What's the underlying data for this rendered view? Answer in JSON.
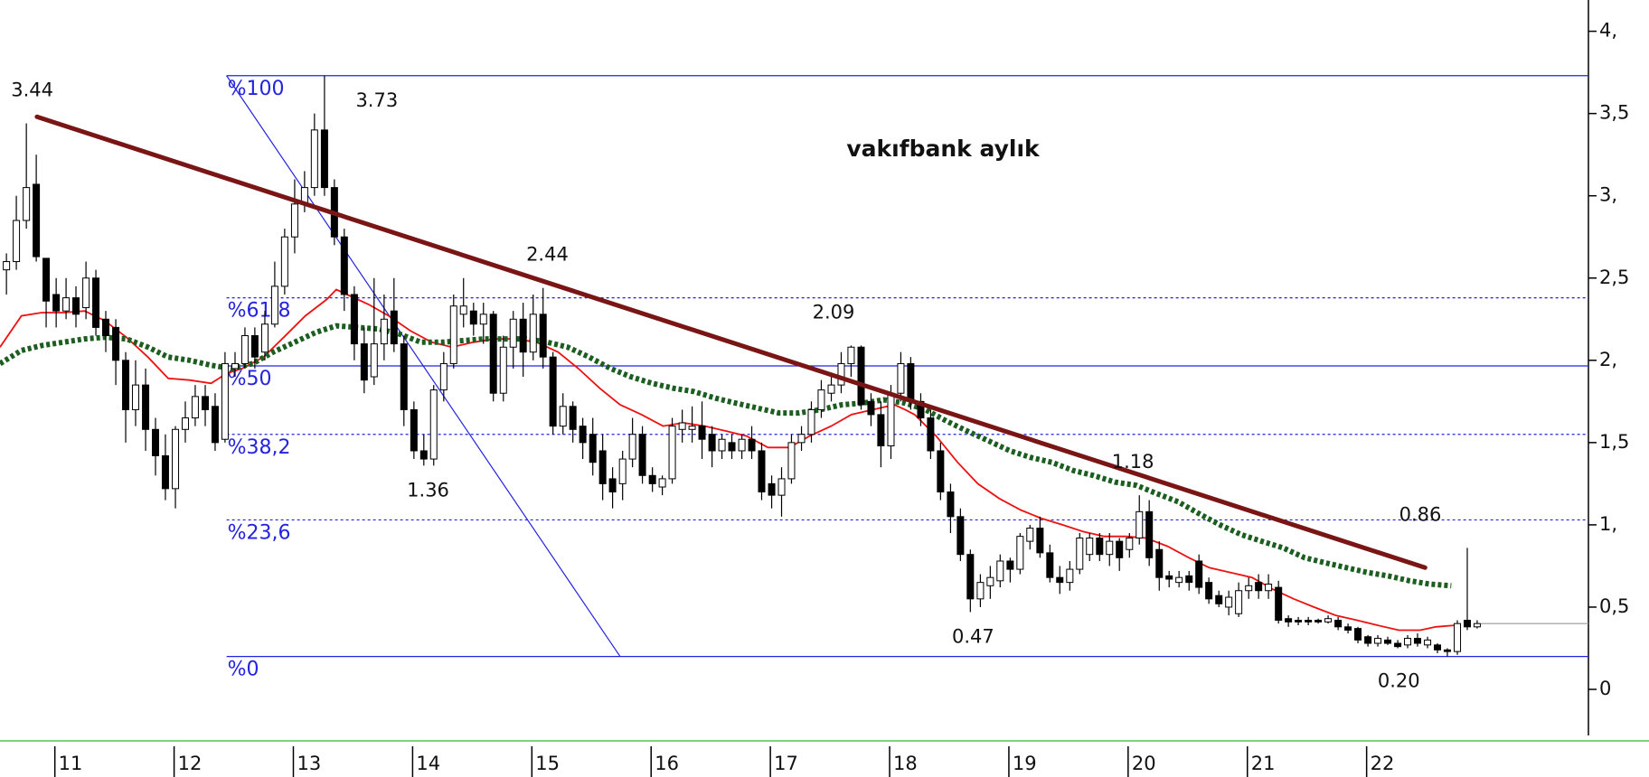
{
  "chart_data": {
    "type": "candlestick",
    "title": "vakıfbank aylık",
    "xlim": [
      2010.54,
      2023.86
    ],
    "ylim": [
      -0.28,
      4.19
    ],
    "xticks": [
      {
        "value": 2011,
        "label": "11"
      },
      {
        "value": 2012,
        "label": "12"
      },
      {
        "value": 2013,
        "label": "13"
      },
      {
        "value": 2014,
        "label": "14"
      },
      {
        "value": 2015,
        "label": "15"
      },
      {
        "value": 2016,
        "label": "16"
      },
      {
        "value": 2017,
        "label": "17"
      },
      {
        "value": 2018,
        "label": "18"
      },
      {
        "value": 2019,
        "label": "19"
      },
      {
        "value": 2020,
        "label": "20"
      },
      {
        "value": 2021,
        "label": "21"
      },
      {
        "value": 2022,
        "label": "22"
      }
    ],
    "yticks": [
      0,
      {
        "value": 0.5,
        "label": "0,5"
      },
      {
        "value": 1,
        "label": "1,"
      },
      {
        "value": 1.5,
        "label": "1,5"
      },
      {
        "value": 2,
        "label": "2,"
      },
      {
        "value": 2.5,
        "label": "2,5"
      },
      {
        "value": 3,
        "label": "3,"
      },
      {
        "value": 3.5,
        "label": "3,5"
      },
      {
        "value": 4,
        "label": "4,"
      }
    ],
    "up_color": "#ffffff",
    "down_color": "#000000",
    "x": [
      2010.594,
      2010.677,
      2010.761,
      2010.844,
      2010.927,
      2011.011,
      2011.094,
      2011.177,
      2011.261,
      2011.344,
      2011.427,
      2011.511,
      2011.594,
      2011.677,
      2011.761,
      2011.844,
      2011.927,
      2012.011,
      2012.094,
      2012.177,
      2012.261,
      2012.344,
      2012.427,
      2012.511,
      2012.594,
      2012.677,
      2012.761,
      2012.844,
      2012.927,
      2013.011,
      2013.094,
      2013.177,
      2013.261,
      2013.344,
      2013.427,
      2013.511,
      2013.594,
      2013.677,
      2013.761,
      2013.844,
      2013.927,
      2014.011,
      2014.094,
      2014.177,
      2014.261,
      2014.344,
      2014.427,
      2014.511,
      2014.594,
      2014.677,
      2014.761,
      2014.844,
      2014.927,
      2015.011,
      2015.094,
      2015.177,
      2015.261,
      2015.344,
      2015.427,
      2015.511,
      2015.594,
      2015.677,
      2015.761,
      2015.844,
      2015.927,
      2016.011,
      2016.094,
      2016.177,
      2016.261,
      2016.344,
      2016.427,
      2016.511,
      2016.594,
      2016.677,
      2016.761,
      2016.844,
      2016.927,
      2017.011,
      2017.094,
      2017.177,
      2017.261,
      2017.344,
      2017.427,
      2017.511,
      2017.594,
      2017.677,
      2017.761,
      2017.844,
      2017.927,
      2018.011,
      2018.094,
      2018.177,
      2018.261,
      2018.344,
      2018.427,
      2018.511,
      2018.594,
      2018.677,
      2018.761,
      2018.844,
      2018.927,
      2019.011,
      2019.094,
      2019.177,
      2019.261,
      2019.344,
      2019.427,
      2019.511,
      2019.594,
      2019.677,
      2019.761,
      2019.844,
      2019.927,
      2020.011,
      2020.094,
      2020.177,
      2020.261,
      2020.344,
      2020.427,
      2020.511,
      2020.594,
      2020.677,
      2020.761,
      2020.844,
      2020.927,
      2021.011,
      2021.094,
      2021.177,
      2021.261,
      2021.344,
      2021.427,
      2021.511,
      2021.594,
      2021.677,
      2021.761,
      2021.844,
      2021.927,
      2022.011,
      2022.094,
      2022.177,
      2022.261,
      2022.344,
      2022.427,
      2022.511,
      2022.594,
      2022.677,
      2022.761,
      2022.844,
      2022.927
    ],
    "open": [
      2.55,
      2.6,
      2.85,
      3.07,
      2.62,
      2.4,
      2.3,
      2.38,
      2.32,
      2.5,
      2.25,
      2.2,
      2.0,
      1.7,
      1.85,
      1.58,
      1.42,
      1.22,
      1.58,
      1.65,
      1.78,
      1.72,
      1.52,
      1.95,
      1.98,
      2.15,
      2.05,
      2.22,
      2.45,
      2.75,
      2.95,
      3.05,
      3.4,
      3.05,
      2.75,
      2.4,
      2.1,
      1.9,
      2.1,
      2.3,
      2.1,
      1.7,
      1.45,
      1.4,
      1.82,
      1.98,
      2.28,
      2.3,
      2.22,
      2.28,
      1.8,
      2.08,
      2.25,
      2.05,
      2.28,
      2.02,
      1.6,
      1.72,
      1.6,
      1.55,
      1.45,
      1.28,
      1.25,
      1.4,
      1.55,
      1.3,
      1.23,
      1.28,
      1.58,
      1.58,
      1.6,
      1.55,
      1.45,
      1.5,
      1.45,
      1.52,
      1.45,
      1.25,
      1.18,
      1.28,
      1.5,
      1.55,
      1.7,
      1.8,
      1.85,
      1.98,
      2.08,
      1.75,
      1.67,
      1.48,
      1.8,
      1.98,
      1.75,
      1.65,
      1.45,
      1.2,
      1.05,
      0.82,
      0.55,
      0.63,
      0.66,
      0.78,
      0.73,
      0.9,
      0.98,
      0.83,
      0.68,
      0.65,
      0.73,
      0.82,
      0.92,
      0.82,
      0.9,
      0.85,
      0.92,
      1.08,
      0.85,
      0.69,
      0.65,
      0.69,
      0.78,
      0.65,
      0.57,
      0.5,
      0.46,
      0.6,
      0.65,
      0.6,
      0.62,
      0.43,
      0.42,
      0.42,
      0.42,
      0.41,
      0.42,
      0.38,
      0.37,
      0.32,
      0.28,
      0.3,
      0.28,
      0.27,
      0.31,
      0.27,
      0.27,
      0.24,
      0.23,
      0.42,
      0.38
    ],
    "high": [
      2.65,
      3.0,
      3.44,
      3.25,
      2.6,
      2.5,
      2.5,
      2.45,
      2.6,
      2.55,
      2.3,
      2.25,
      2.05,
      2.0,
      1.95,
      1.65,
      1.55,
      1.6,
      1.75,
      1.85,
      1.85,
      1.8,
      2.05,
      2.05,
      2.2,
      2.2,
      2.3,
      2.6,
      2.8,
      3.1,
      3.15,
      3.5,
      3.73,
      3.1,
      2.8,
      2.45,
      2.2,
      2.5,
      2.4,
      2.5,
      2.15,
      1.75,
      1.55,
      1.85,
      2.05,
      2.4,
      2.5,
      2.35,
      2.35,
      2.3,
      2.15,
      2.3,
      2.35,
      2.4,
      2.44,
      2.05,
      1.8,
      1.75,
      1.65,
      1.65,
      1.55,
      1.35,
      1.45,
      1.65,
      1.6,
      1.35,
      1.3,
      1.65,
      1.7,
      1.72,
      1.75,
      1.6,
      1.55,
      1.55,
      1.55,
      1.6,
      1.5,
      1.3,
      1.35,
      1.55,
      1.6,
      1.75,
      1.88,
      1.9,
      2.05,
      2.09,
      2.09,
      1.8,
      1.75,
      1.85,
      2.05,
      2.02,
      1.8,
      1.7,
      1.5,
      1.25,
      1.1,
      0.85,
      0.7,
      0.75,
      0.82,
      0.8,
      0.95,
      1.0,
      1.05,
      0.88,
      0.75,
      0.78,
      0.95,
      0.95,
      0.95,
      0.95,
      0.92,
      0.95,
      1.18,
      1.15,
      0.9,
      0.72,
      0.72,
      0.72,
      0.82,
      0.68,
      0.6,
      0.6,
      0.65,
      0.68,
      0.7,
      0.7,
      0.66,
      0.45,
      0.44,
      0.44,
      0.43,
      0.45,
      0.44,
      0.4,
      0.38,
      0.33,
      0.33,
      0.32,
      0.3,
      0.33,
      0.34,
      0.32,
      0.28,
      0.25,
      0.42,
      0.86,
      0.42
    ],
    "low": [
      2.4,
      2.55,
      2.8,
      2.6,
      2.2,
      2.2,
      2.25,
      2.2,
      2.25,
      2.15,
      2.05,
      1.85,
      1.5,
      1.6,
      1.45,
      1.3,
      1.15,
      1.1,
      1.5,
      1.6,
      1.6,
      1.45,
      1.5,
      1.9,
      1.95,
      1.95,
      2.0,
      2.2,
      2.4,
      2.65,
      2.9,
      3.0,
      3.0,
      2.7,
      2.3,
      2.0,
      1.8,
      1.85,
      2.0,
      2.05,
      1.6,
      1.4,
      1.36,
      1.36,
      1.75,
      1.95,
      2.2,
      2.15,
      2.1,
      1.75,
      1.75,
      1.95,
      1.9,
      2.0,
      1.95,
      1.55,
      1.55,
      1.5,
      1.4,
      1.3,
      1.15,
      1.1,
      1.15,
      1.35,
      1.25,
      1.2,
      1.18,
      1.25,
      1.5,
      1.5,
      1.4,
      1.35,
      1.4,
      1.4,
      1.4,
      1.4,
      1.15,
      1.1,
      1.05,
      1.25,
      1.45,
      1.5,
      1.65,
      1.75,
      1.8,
      1.9,
      1.7,
      1.6,
      1.35,
      1.4,
      1.75,
      1.7,
      1.6,
      1.4,
      1.15,
      0.95,
      0.78,
      0.47,
      0.5,
      0.55,
      0.62,
      0.65,
      0.7,
      0.85,
      0.8,
      0.65,
      0.58,
      0.6,
      0.7,
      0.78,
      0.78,
      0.75,
      0.72,
      0.8,
      0.88,
      0.75,
      0.6,
      0.62,
      0.62,
      0.6,
      0.58,
      0.52,
      0.5,
      0.45,
      0.44,
      0.55,
      0.55,
      0.55,
      0.4,
      0.38,
      0.39,
      0.39,
      0.4,
      0.4,
      0.36,
      0.34,
      0.28,
      0.26,
      0.26,
      0.27,
      0.25,
      0.25,
      0.26,
      0.25,
      0.22,
      0.2,
      0.21,
      0.36,
      0.37
    ],
    "close": [
      2.6,
      2.85,
      3.05,
      2.63,
      2.36,
      2.3,
      2.38,
      2.28,
      2.5,
      2.2,
      2.15,
      2.0,
      1.7,
      1.85,
      1.58,
      1.42,
      1.22,
      1.58,
      1.65,
      1.78,
      1.7,
      1.5,
      1.98,
      1.98,
      2.15,
      2.02,
      2.22,
      2.45,
      2.75,
      2.95,
      3.05,
      3.4,
      3.05,
      2.75,
      2.4,
      2.1,
      1.88,
      2.1,
      2.25,
      2.1,
      1.7,
      1.45,
      1.4,
      1.82,
      1.98,
      2.33,
      2.33,
      2.22,
      2.28,
      1.8,
      2.08,
      2.25,
      2.05,
      2.28,
      2.02,
      1.6,
      1.72,
      1.58,
      1.5,
      1.38,
      1.25,
      1.2,
      1.4,
      1.55,
      1.3,
      1.25,
      1.28,
      1.6,
      1.62,
      1.6,
      1.52,
      1.45,
      1.52,
      1.45,
      1.52,
      1.45,
      1.2,
      1.18,
      1.28,
      1.5,
      1.55,
      1.7,
      1.82,
      1.85,
      1.98,
      2.08,
      1.73,
      1.67,
      1.48,
      1.8,
      1.98,
      1.75,
      1.65,
      1.45,
      1.2,
      1.05,
      0.82,
      0.55,
      0.65,
      0.68,
      0.78,
      0.73,
      0.93,
      0.98,
      0.83,
      0.68,
      0.65,
      0.73,
      0.92,
      0.92,
      0.82,
      0.9,
      0.8,
      0.92,
      1.08,
      0.8,
      0.68,
      0.67,
      0.68,
      0.65,
      0.62,
      0.55,
      0.52,
      0.56,
      0.6,
      0.63,
      0.6,
      0.64,
      0.42,
      0.41,
      0.41,
      0.41,
      0.41,
      0.43,
      0.38,
      0.36,
      0.3,
      0.28,
      0.31,
      0.28,
      0.26,
      0.31,
      0.28,
      0.3,
      0.24,
      0.23,
      0.4,
      0.38,
      0.4
    ],
    "last_price_color": "#999999",
    "moving_averages": [
      {
        "color": "#ee1111",
        "style": "solid",
        "x": [
          2010.54,
          2010.72,
          2010.89,
          2011.07,
          2011.25,
          2011.42,
          2011.6,
          2011.78,
          2011.95,
          2012.13,
          2012.31,
          2012.44,
          2012.57,
          2012.75,
          2012.92,
          2013.1,
          2013.28,
          2013.36,
          2013.45,
          2013.63,
          2013.8,
          2013.98,
          2014.16,
          2014.33,
          2014.51,
          2014.69,
          2014.86,
          2015.04,
          2015.22,
          2015.39,
          2015.57,
          2015.74,
          2015.92,
          2016.1,
          2016.27,
          2016.45,
          2016.63,
          2016.8,
          2016.98,
          2017.16,
          2017.33,
          2017.51,
          2017.68,
          2017.86,
          2018.04,
          2018.13,
          2018.21,
          2018.39,
          2018.57,
          2018.74,
          2018.92,
          2019.1,
          2019.27,
          2019.45,
          2019.62,
          2019.8,
          2019.98,
          2020.15,
          2020.33,
          2020.51,
          2020.68,
          2020.86,
          2021.04,
          2021.21,
          2021.39,
          2021.56,
          2021.74,
          2021.92,
          2022.09,
          2022.27,
          2022.45,
          2022.58,
          2022.75
        ],
        "values": [
          2.08,
          2.27,
          2.29,
          2.29,
          2.3,
          2.24,
          2.14,
          2.02,
          1.89,
          1.88,
          1.86,
          1.92,
          1.95,
          2.02,
          2.14,
          2.27,
          2.37,
          2.43,
          2.4,
          2.34,
          2.27,
          2.18,
          2.11,
          2.08,
          2.11,
          2.13,
          2.13,
          2.11,
          2.05,
          1.95,
          1.83,
          1.73,
          1.67,
          1.6,
          1.62,
          1.6,
          1.57,
          1.54,
          1.47,
          1.47,
          1.54,
          1.6,
          1.67,
          1.7,
          1.73,
          1.7,
          1.67,
          1.54,
          1.38,
          1.25,
          1.16,
          1.09,
          1.04,
          1.0,
          0.96,
          0.93,
          0.93,
          0.92,
          0.87,
          0.8,
          0.74,
          0.71,
          0.68,
          0.61,
          0.55,
          0.5,
          0.45,
          0.42,
          0.39,
          0.36,
          0.36,
          0.38,
          0.39
        ]
      },
      {
        "color": "#1b5e20",
        "style": "dotted",
        "x": [
          2010.54,
          2010.72,
          2010.89,
          2011.07,
          2011.25,
          2011.42,
          2011.6,
          2011.78,
          2011.95,
          2012.13,
          2012.31,
          2012.48,
          2012.66,
          2012.83,
          2013.01,
          2013.19,
          2013.36,
          2013.54,
          2013.72,
          2013.89,
          2014.07,
          2014.25,
          2014.42,
          2014.6,
          2014.77,
          2014.95,
          2015.13,
          2015.3,
          2015.48,
          2015.66,
          2015.83,
          2016.01,
          2016.19,
          2016.36,
          2016.54,
          2016.71,
          2016.89,
          2017.07,
          2017.24,
          2017.42,
          2017.6,
          2017.77,
          2017.95,
          2018.13,
          2018.3,
          2018.48,
          2018.65,
          2018.83,
          2019.01,
          2019.18,
          2019.36,
          2019.54,
          2019.71,
          2019.89,
          2020.07,
          2020.24,
          2020.42,
          2020.59,
          2020.77,
          2020.95,
          2021.12,
          2021.3,
          2021.48,
          2021.65,
          2021.83,
          2022.01,
          2022.18,
          2022.36,
          2022.53,
          2022.71
        ],
        "values": [
          1.98,
          2.06,
          2.09,
          2.11,
          2.13,
          2.14,
          2.13,
          2.08,
          2.02,
          2.0,
          1.97,
          1.95,
          1.98,
          2.05,
          2.11,
          2.17,
          2.21,
          2.2,
          2.19,
          2.16,
          2.11,
          2.11,
          2.12,
          2.13,
          2.13,
          2.13,
          2.11,
          2.08,
          2.02,
          1.95,
          1.9,
          1.86,
          1.83,
          1.81,
          1.77,
          1.74,
          1.71,
          1.68,
          1.68,
          1.7,
          1.73,
          1.74,
          1.76,
          1.74,
          1.7,
          1.63,
          1.57,
          1.51,
          1.45,
          1.41,
          1.38,
          1.33,
          1.3,
          1.26,
          1.24,
          1.19,
          1.14,
          1.07,
          1.0,
          0.94,
          0.9,
          0.86,
          0.8,
          0.77,
          0.74,
          0.71,
          0.69,
          0.66,
          0.64,
          0.63
        ]
      }
    ],
    "trendline": {
      "color": "#7a1515",
      "x": [
        2010.85,
        2022.49
      ],
      "values": [
        3.48,
        0.74
      ]
    },
    "fibonacci": {
      "color": "#2323e0",
      "x_start": 2012.44,
      "levels": [
        {
          "label": "%100",
          "value": 3.73,
          "style": "solid"
        },
        {
          "label": "%61,8",
          "value": 2.38,
          "style": "dashed"
        },
        {
          "label": "%50",
          "value": 1.966,
          "style": "solid"
        },
        {
          "label": "%38,2",
          "value": 1.55,
          "style": "dashed"
        },
        {
          "label": "%23,6",
          "value": 1.03,
          "style": "dashed"
        },
        {
          "label": "%0",
          "value": 0.2,
          "style": "solid"
        }
      ],
      "diagonal": {
        "x": [
          2012.44,
          2015.74
        ],
        "values": [
          3.73,
          0.2
        ]
      }
    },
    "annotations": [
      {
        "x": 2010.81,
        "value": 3.44,
        "position": "above"
      },
      {
        "x": 2013.7,
        "value": 3.73,
        "position": "below"
      },
      {
        "x": 2015.13,
        "value": 2.44,
        "position": "above"
      },
      {
        "x": 2017.53,
        "value": 2.09,
        "position": "above"
      },
      {
        "x": 2014.13,
        "value": 1.36,
        "position": "below"
      },
      {
        "x": 2020.04,
        "value": 1.18,
        "position": "above"
      },
      {
        "x": 2022.45,
        "value": 0.86,
        "position": "above"
      },
      {
        "x": 2018.7,
        "value": 0.47,
        "position": "below"
      },
      {
        "x": 2022.27,
        "value": 0.2,
        "label": "0.20",
        "position": "below"
      }
    ]
  }
}
